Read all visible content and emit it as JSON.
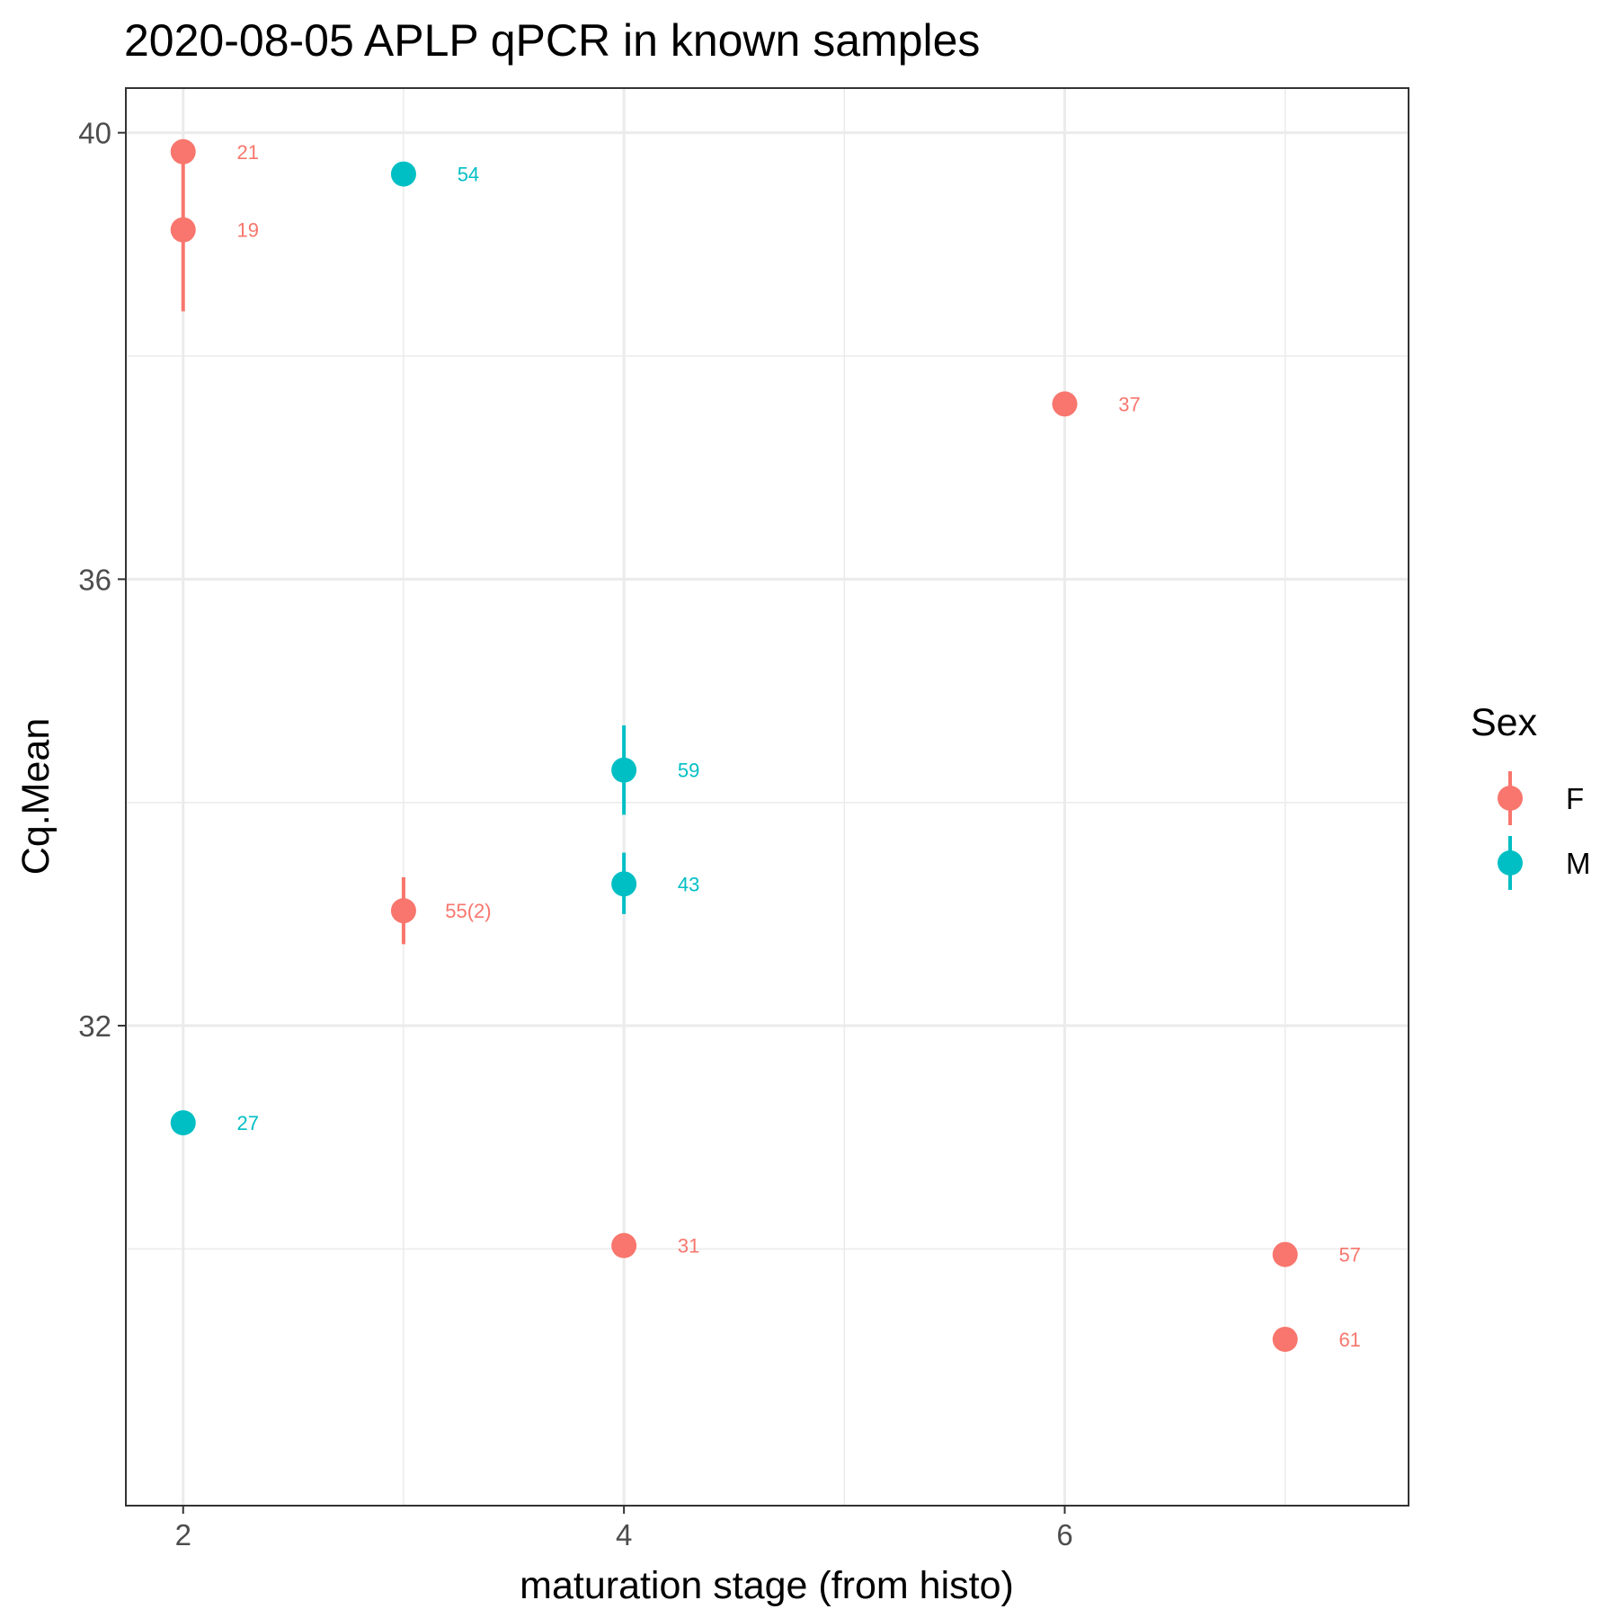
{
  "chart_data": {
    "type": "scatter",
    "title": "2020-08-05 APLP qPCR in known samples",
    "xlabel": "maturation stage (from histo)",
    "ylabel": "Cq.Mean",
    "xlim": [
      1.74,
      7.56
    ],
    "ylim": [
      27.7,
      40.4
    ],
    "x_ticks": [
      2,
      4,
      6
    ],
    "y_ticks": [
      32,
      36,
      40
    ],
    "x_minor_grid": [
      3,
      5,
      7
    ],
    "y_minor_grid": [
      30,
      34,
      38
    ],
    "grid": true,
    "legend": {
      "title": "Sex",
      "position": "right",
      "entries": [
        {
          "label": "F",
          "color": "#F8766D"
        },
        {
          "label": "M",
          "color": "#00BFC4"
        }
      ]
    },
    "series": [
      {
        "name": "F",
        "color": "#F8766D",
        "points": [
          {
            "x": 2,
            "y": 39.83,
            "label": "21"
          },
          {
            "x": 2,
            "y": 39.13,
            "label": "19",
            "err_low": 38.4,
            "err_high": 39.85
          },
          {
            "x": 3,
            "y": 33.03,
            "label": "55(2)",
            "err_low": 32.73,
            "err_high": 33.33
          },
          {
            "x": 4,
            "y": 30.03,
            "label": "31"
          },
          {
            "x": 6,
            "y": 37.57,
            "label": "37"
          },
          {
            "x": 7,
            "y": 29.95,
            "label": "57"
          },
          {
            "x": 7,
            "y": 29.19,
            "label": "61"
          }
        ]
      },
      {
        "name": "M",
        "color": "#00BFC4",
        "points": [
          {
            "x": 2,
            "y": 31.13,
            "label": "27"
          },
          {
            "x": 3,
            "y": 39.63,
            "label": "54"
          },
          {
            "x": 4,
            "y": 34.29,
            "label": "59",
            "err_low": 33.89,
            "err_high": 34.69
          },
          {
            "x": 4,
            "y": 33.27,
            "label": "43",
            "err_low": 33.0,
            "err_high": 33.55
          }
        ]
      }
    ]
  }
}
